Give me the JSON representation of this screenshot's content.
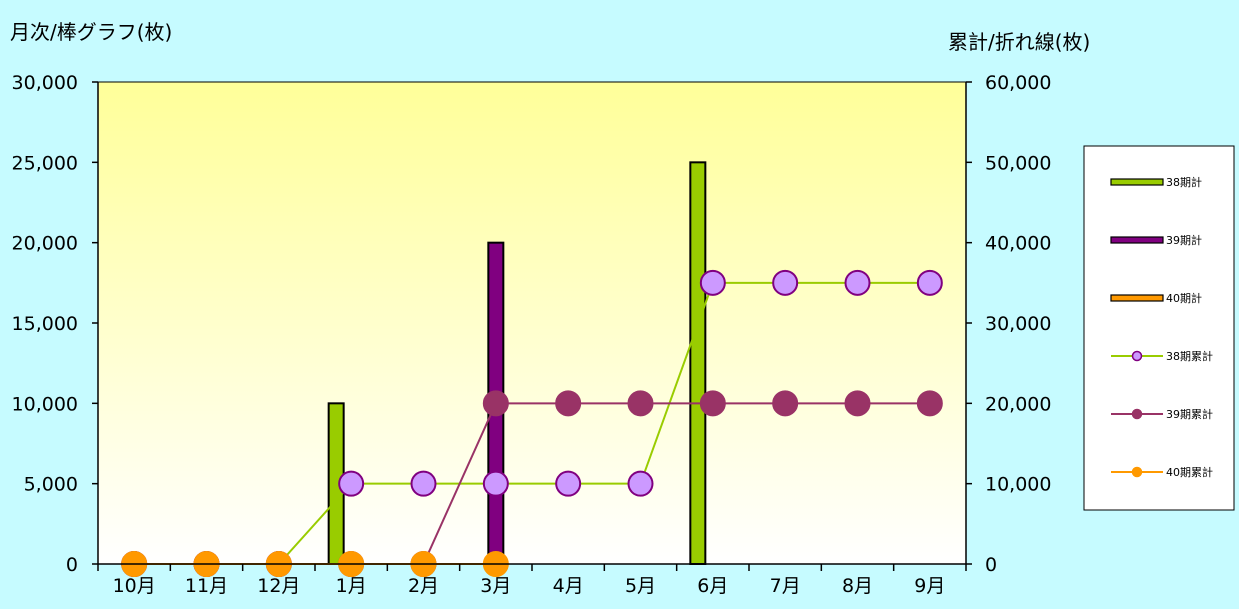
{
  "chart_data": {
    "type": "bar",
    "left_axis_title": "月次/棒グラフ(枚)",
    "right_axis_title": "累計/折れ線(枚)",
    "categories": [
      "10月",
      "11月",
      "12月",
      "1月",
      "2月",
      "3月",
      "4月",
      "5月",
      "6月",
      "7月",
      "8月",
      "9月"
    ],
    "left_ylim": [
      0,
      30000
    ],
    "right_ylim": [
      0,
      60000
    ],
    "left_ticks": [
      "0",
      "5,000",
      "10,000",
      "15,000",
      "20,000",
      "25,000",
      "30,000"
    ],
    "right_ticks": [
      "0",
      "10,000",
      "20,000",
      "30,000",
      "40,000",
      "50,000",
      "60,000"
    ],
    "bar_series": [
      {
        "name": "38期計",
        "color": "#99cc00",
        "values": [
          0,
          0,
          0,
          10000,
          0,
          0,
          0,
          0,
          25000,
          0,
          0,
          0
        ]
      },
      {
        "name": "39期計",
        "color": "#800080",
        "values": [
          0,
          0,
          0,
          0,
          0,
          20000,
          0,
          0,
          0,
          0,
          0,
          0
        ]
      },
      {
        "name": "40期計",
        "color": "#ff9900",
        "values": [
          0,
          0,
          0,
          0,
          0,
          0,
          null,
          null,
          null,
          null,
          null,
          null
        ]
      }
    ],
    "line_series": [
      {
        "name": "38期累計",
        "color": "#99cc00",
        "marker_fill": "#cc99ff",
        "marker_stroke": "#800080",
        "values": [
          0,
          0,
          0,
          10000,
          10000,
          10000,
          10000,
          10000,
          35000,
          35000,
          35000,
          35000
        ]
      },
      {
        "name": "39期累計",
        "color": "#993366",
        "marker_fill": "#993366",
        "marker_stroke": "#993366",
        "values": [
          0,
          0,
          0,
          0,
          0,
          20000,
          20000,
          20000,
          20000,
          20000,
          20000,
          20000
        ]
      },
      {
        "name": "40期累計",
        "color": "#ff9900",
        "marker_fill": "#ff9900",
        "marker_stroke": "#ff9900",
        "values": [
          0,
          0,
          0,
          0,
          0,
          0,
          null,
          null,
          null,
          null,
          null,
          null
        ]
      }
    ],
    "plot_background": [
      "#ffff99",
      "#ffffff"
    ],
    "grid": false,
    "legend_position": "right"
  }
}
